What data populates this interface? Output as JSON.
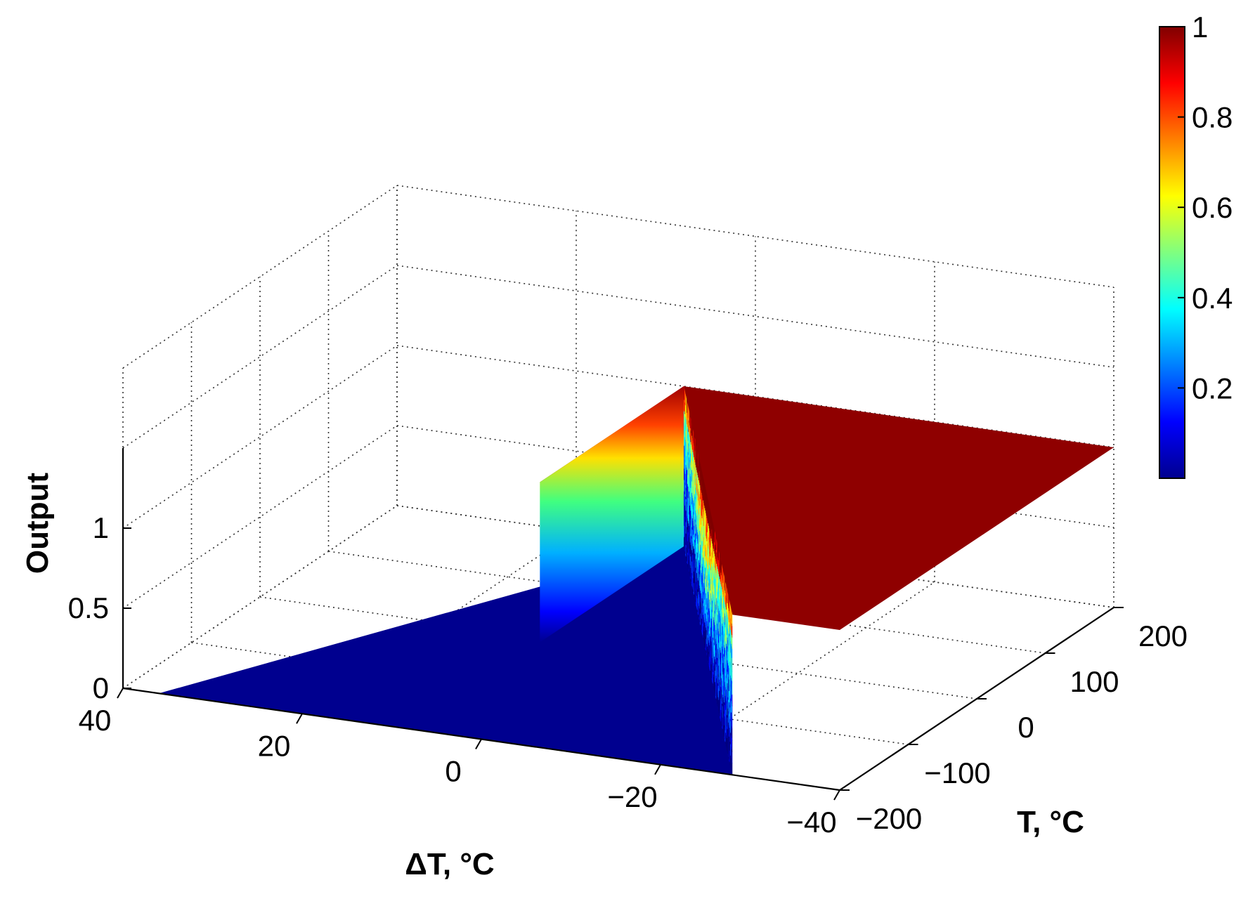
{
  "chart_data": {
    "type": "surface",
    "xlabel": "ΔT, °C",
    "ylabel": "T, °C",
    "zlabel": "Output",
    "x_ticks": [
      "40",
      "20",
      "0",
      "−20",
      "−40"
    ],
    "y_ticks": [
      "−200",
      "−100",
      "0",
      "100",
      "200"
    ],
    "z_ticks": [
      "0",
      "0.5",
      "1"
    ],
    "xlim": [
      -40,
      40
    ],
    "ylim": [
      -200,
      200
    ],
    "zlim": [
      0,
      1
    ],
    "grid": true,
    "colormap": "jet",
    "colorbar": {
      "ticks": [
        "0.2",
        "0.4",
        "0.6",
        "0.8",
        "1"
      ],
      "range": [
        0,
        1
      ],
      "location": "right"
    },
    "surface_regions": [
      {
        "region": "ΔT > 0 (above T, toward +ΔT)",
        "output": 0
      },
      {
        "region": "ΔT < -30",
        "output": 1
      },
      {
        "region": "transition band -30 < ΔT < 0, noisy",
        "output_range": [
          0,
          1
        ]
      }
    ],
    "colors": {
      "low": "#00008f",
      "high": "#8f0000"
    }
  }
}
